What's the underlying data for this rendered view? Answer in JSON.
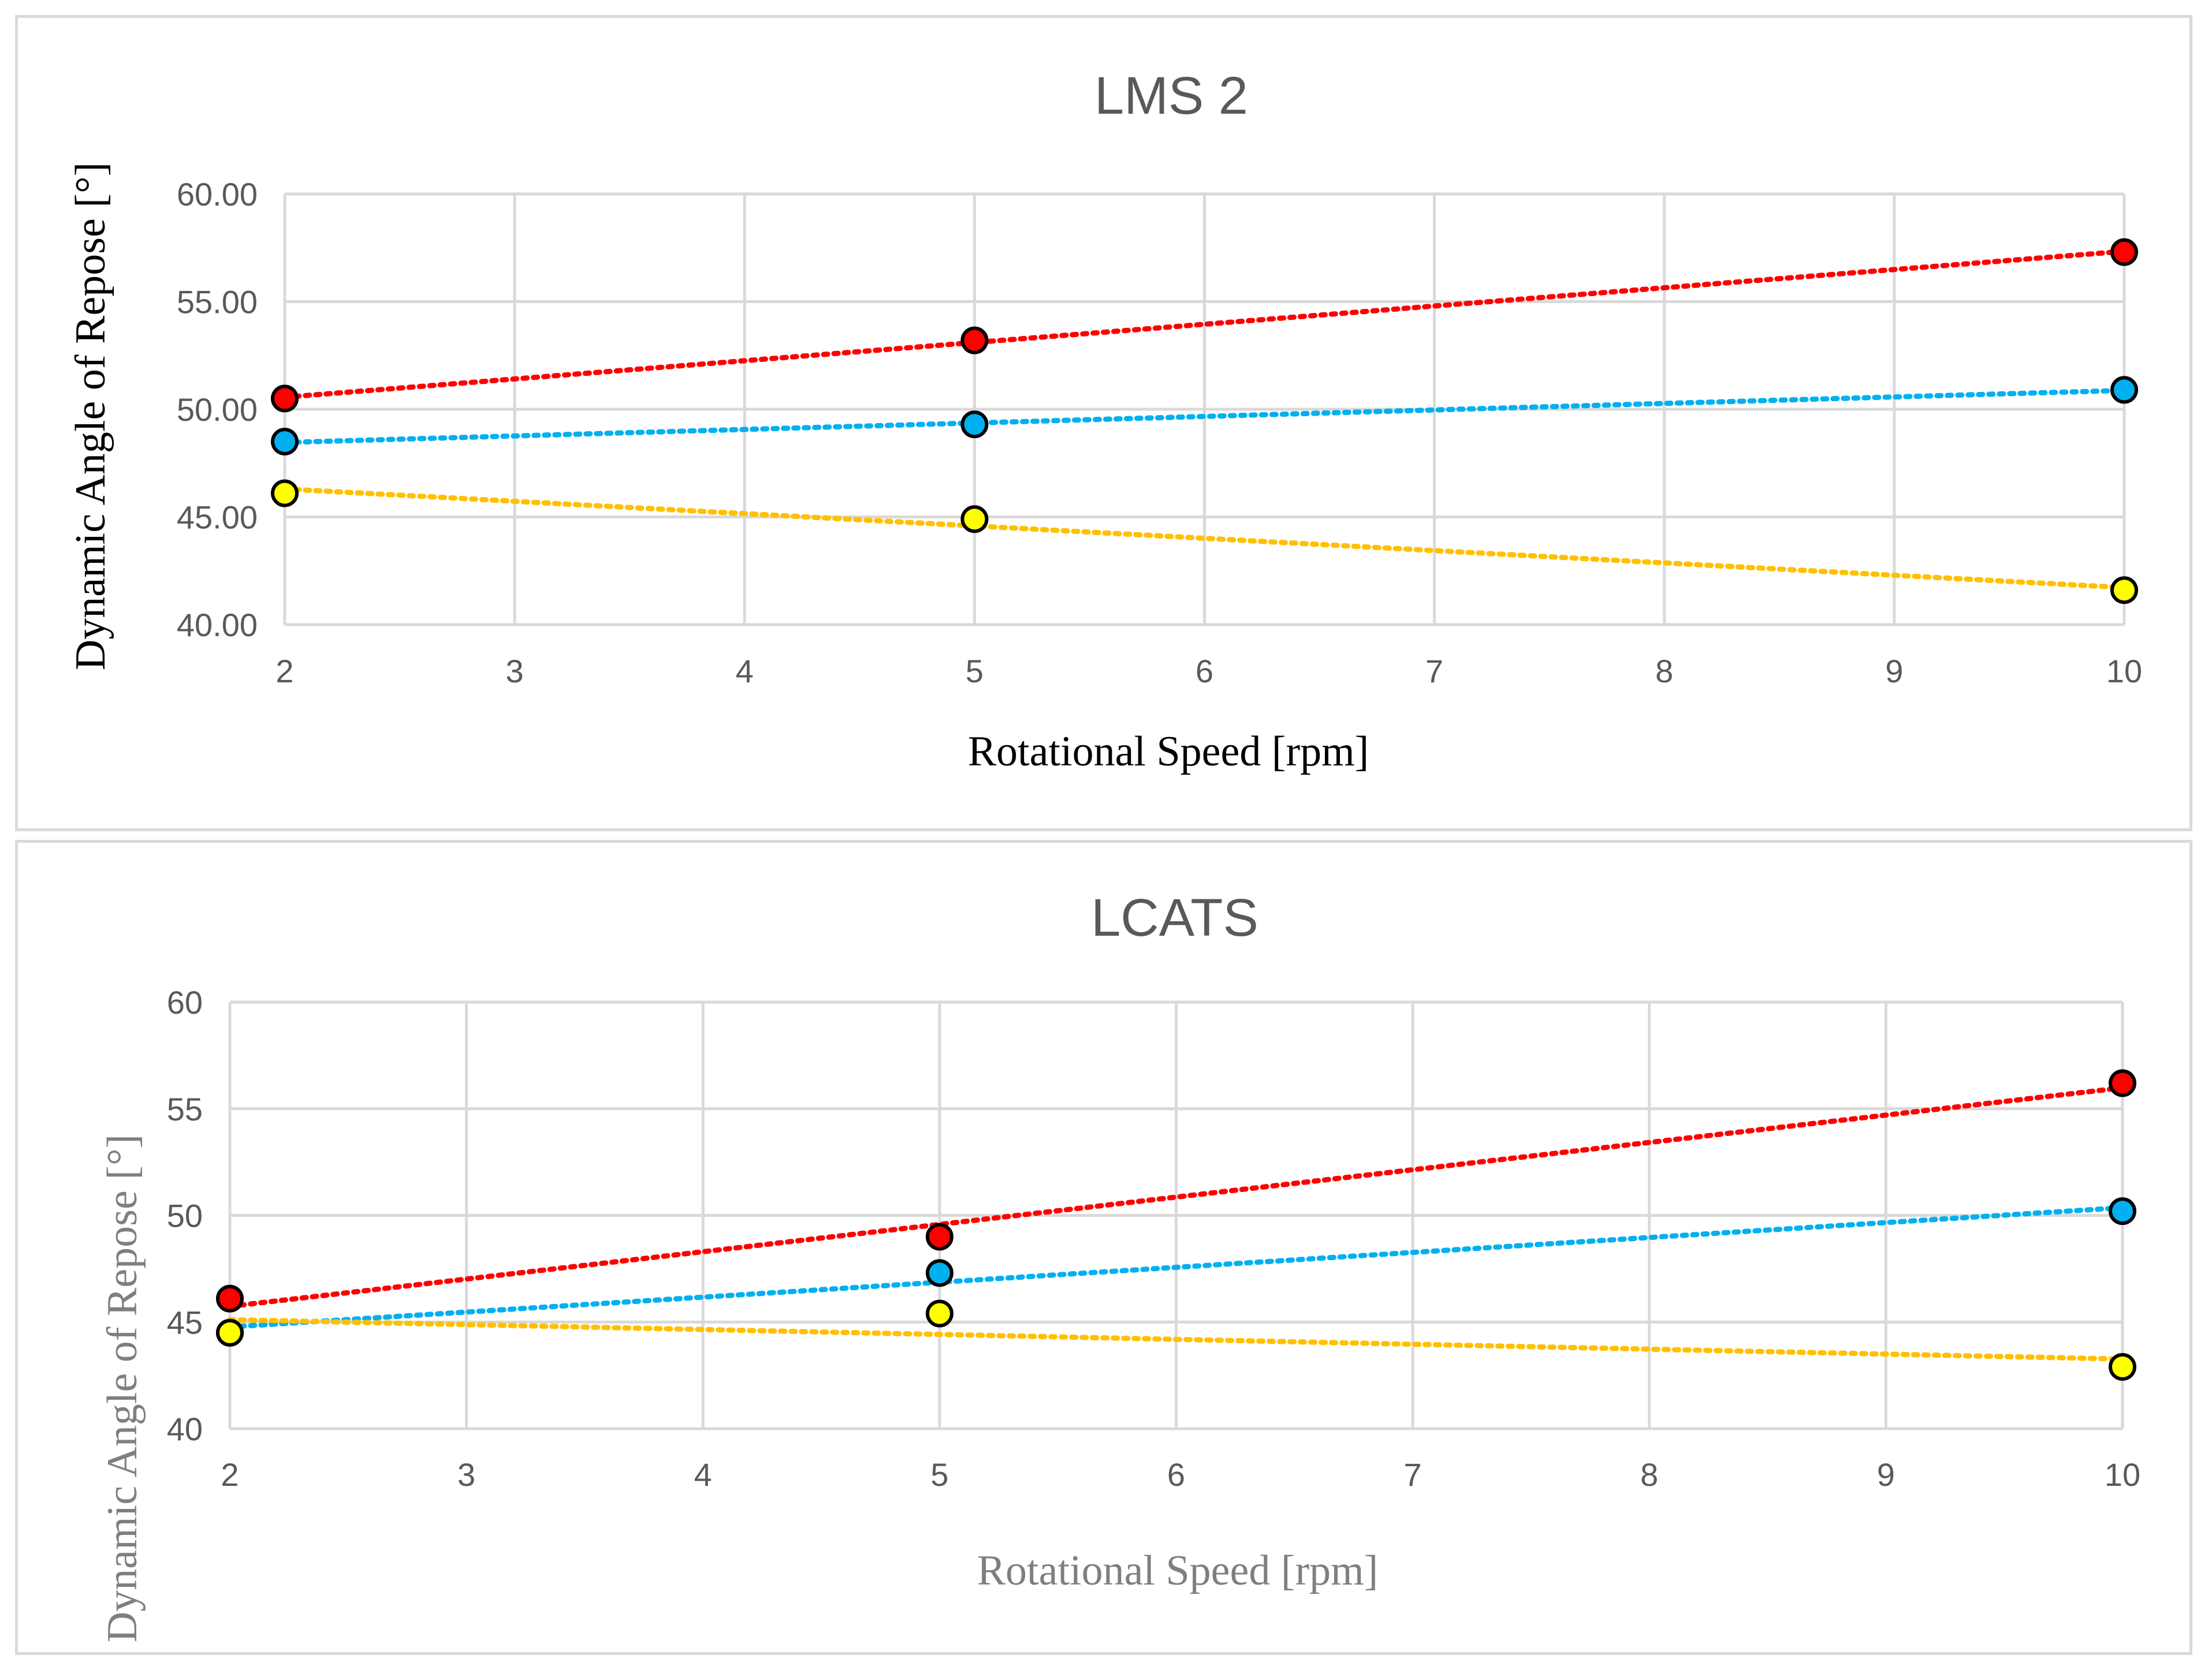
{
  "chart_data": [
    {
      "type": "scatter",
      "title": "LMS 2",
      "xlabel": "Rotational Speed [rpm]",
      "ylabel": "Dynamic Angle of Repose [°]",
      "xlim": [
        2,
        10
      ],
      "ylim": [
        40,
        60
      ],
      "x_ticks": [
        "2",
        "3",
        "4",
        "5",
        "6",
        "7",
        "8",
        "9",
        "10"
      ],
      "y_ticks": [
        "40.00",
        "45.00",
        "50.00",
        "55.00",
        "60.00"
      ],
      "grid": true,
      "trendline": "linear dotted",
      "x": [
        2,
        5,
        10
      ],
      "series": [
        {
          "name": "red",
          "color": "#ff0000",
          "values": [
            50.5,
            53.2,
            57.3
          ]
        },
        {
          "name": "blue",
          "color": "#00b0f0",
          "values": [
            48.5,
            49.3,
            50.9
          ]
        },
        {
          "name": "yellow",
          "color": "#ffff00",
          "trend_color": "#ffc000",
          "values": [
            46.1,
            44.9,
            41.6
          ]
        }
      ]
    },
    {
      "type": "scatter",
      "title": "LCATS",
      "xlabel": "Rotational Speed [rpm]",
      "ylabel": "Dynamic Angle of Repose [°]",
      "xlim": [
        2,
        10
      ],
      "ylim": [
        40,
        60
      ],
      "x_ticks": [
        "2",
        "3",
        "4",
        "5",
        "6",
        "7",
        "8",
        "9",
        "10"
      ],
      "y_ticks": [
        "40",
        "45",
        "50",
        "55",
        "60"
      ],
      "grid": true,
      "trendline": "linear dotted",
      "x": [
        2,
        5,
        10
      ],
      "series": [
        {
          "name": "red",
          "color": "#ff0000",
          "values": [
            46.1,
            49.0,
            56.2
          ]
        },
        {
          "name": "blue",
          "color": "#00b0f0",
          "values": [
            44.5,
            47.3,
            50.2
          ]
        },
        {
          "name": "yellow",
          "color": "#ffff00",
          "trend_color": "#ffc000",
          "values": [
            44.5,
            45.4,
            42.9
          ]
        }
      ]
    }
  ]
}
